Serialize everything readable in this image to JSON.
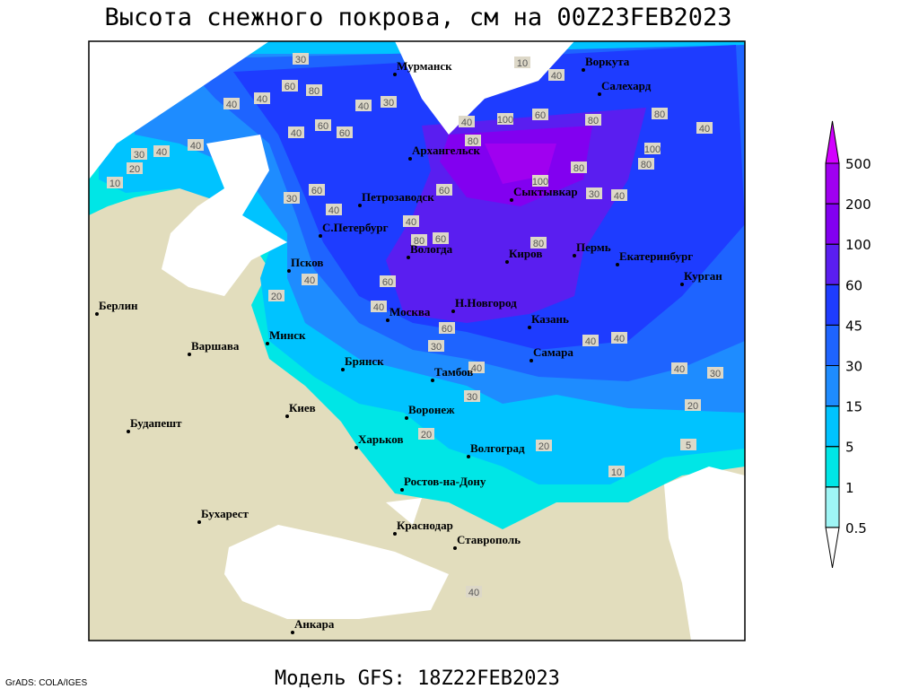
{
  "title": "Высота снежного покрова, см на 00Z23FEB2023",
  "footer": "Модель GFS: 18Z22FEB2023",
  "credit": "GrADS: COLA/IGES",
  "colorbar": {
    "levels": [
      0.5,
      1,
      5,
      15,
      30,
      45,
      60,
      100,
      200,
      500
    ],
    "colors": [
      "#ffffff",
      "#9ff5f5",
      "#00e6e6",
      "#00c3ff",
      "#1e8cff",
      "#1e64ff",
      "#1e3cff",
      "#5a1ef0",
      "#8200f0",
      "#a000f0",
      "#d200ff"
    ]
  },
  "cities": [
    "Мурманск",
    "Воркута",
    "Салехард",
    "Архангельск",
    "Сыктывкар",
    "Петрозаводск",
    "С.Петербург",
    "Вологда",
    "Киров",
    "Пермь",
    "Екатеринбург",
    "Курган",
    "Псков",
    "Н.Новгород",
    "Казань",
    "Москва",
    "Берлин",
    "Варшава",
    "Минск",
    "Брянск",
    "Тамбов",
    "Самара",
    "Воронеж",
    "Киев",
    "Будапешт",
    "Харьков",
    "Волгоград",
    "Ростов-на-Дону",
    "Бухарест",
    "Краснодар",
    "Ставрополь",
    "Анкара"
  ],
  "contour_labels": [
    30,
    10,
    40,
    60,
    80,
    40,
    40,
    30,
    40,
    40,
    100,
    60,
    80,
    80,
    40,
    60,
    40,
    60,
    40,
    40,
    30,
    20,
    10,
    80,
    80,
    80,
    100,
    60,
    30,
    60,
    100,
    30,
    40,
    40,
    40,
    80,
    60,
    80,
    20,
    40,
    60,
    40,
    60,
    30,
    40,
    40,
    40,
    30,
    40,
    30,
    20,
    20,
    20,
    10,
    5,
    40
  ]
}
